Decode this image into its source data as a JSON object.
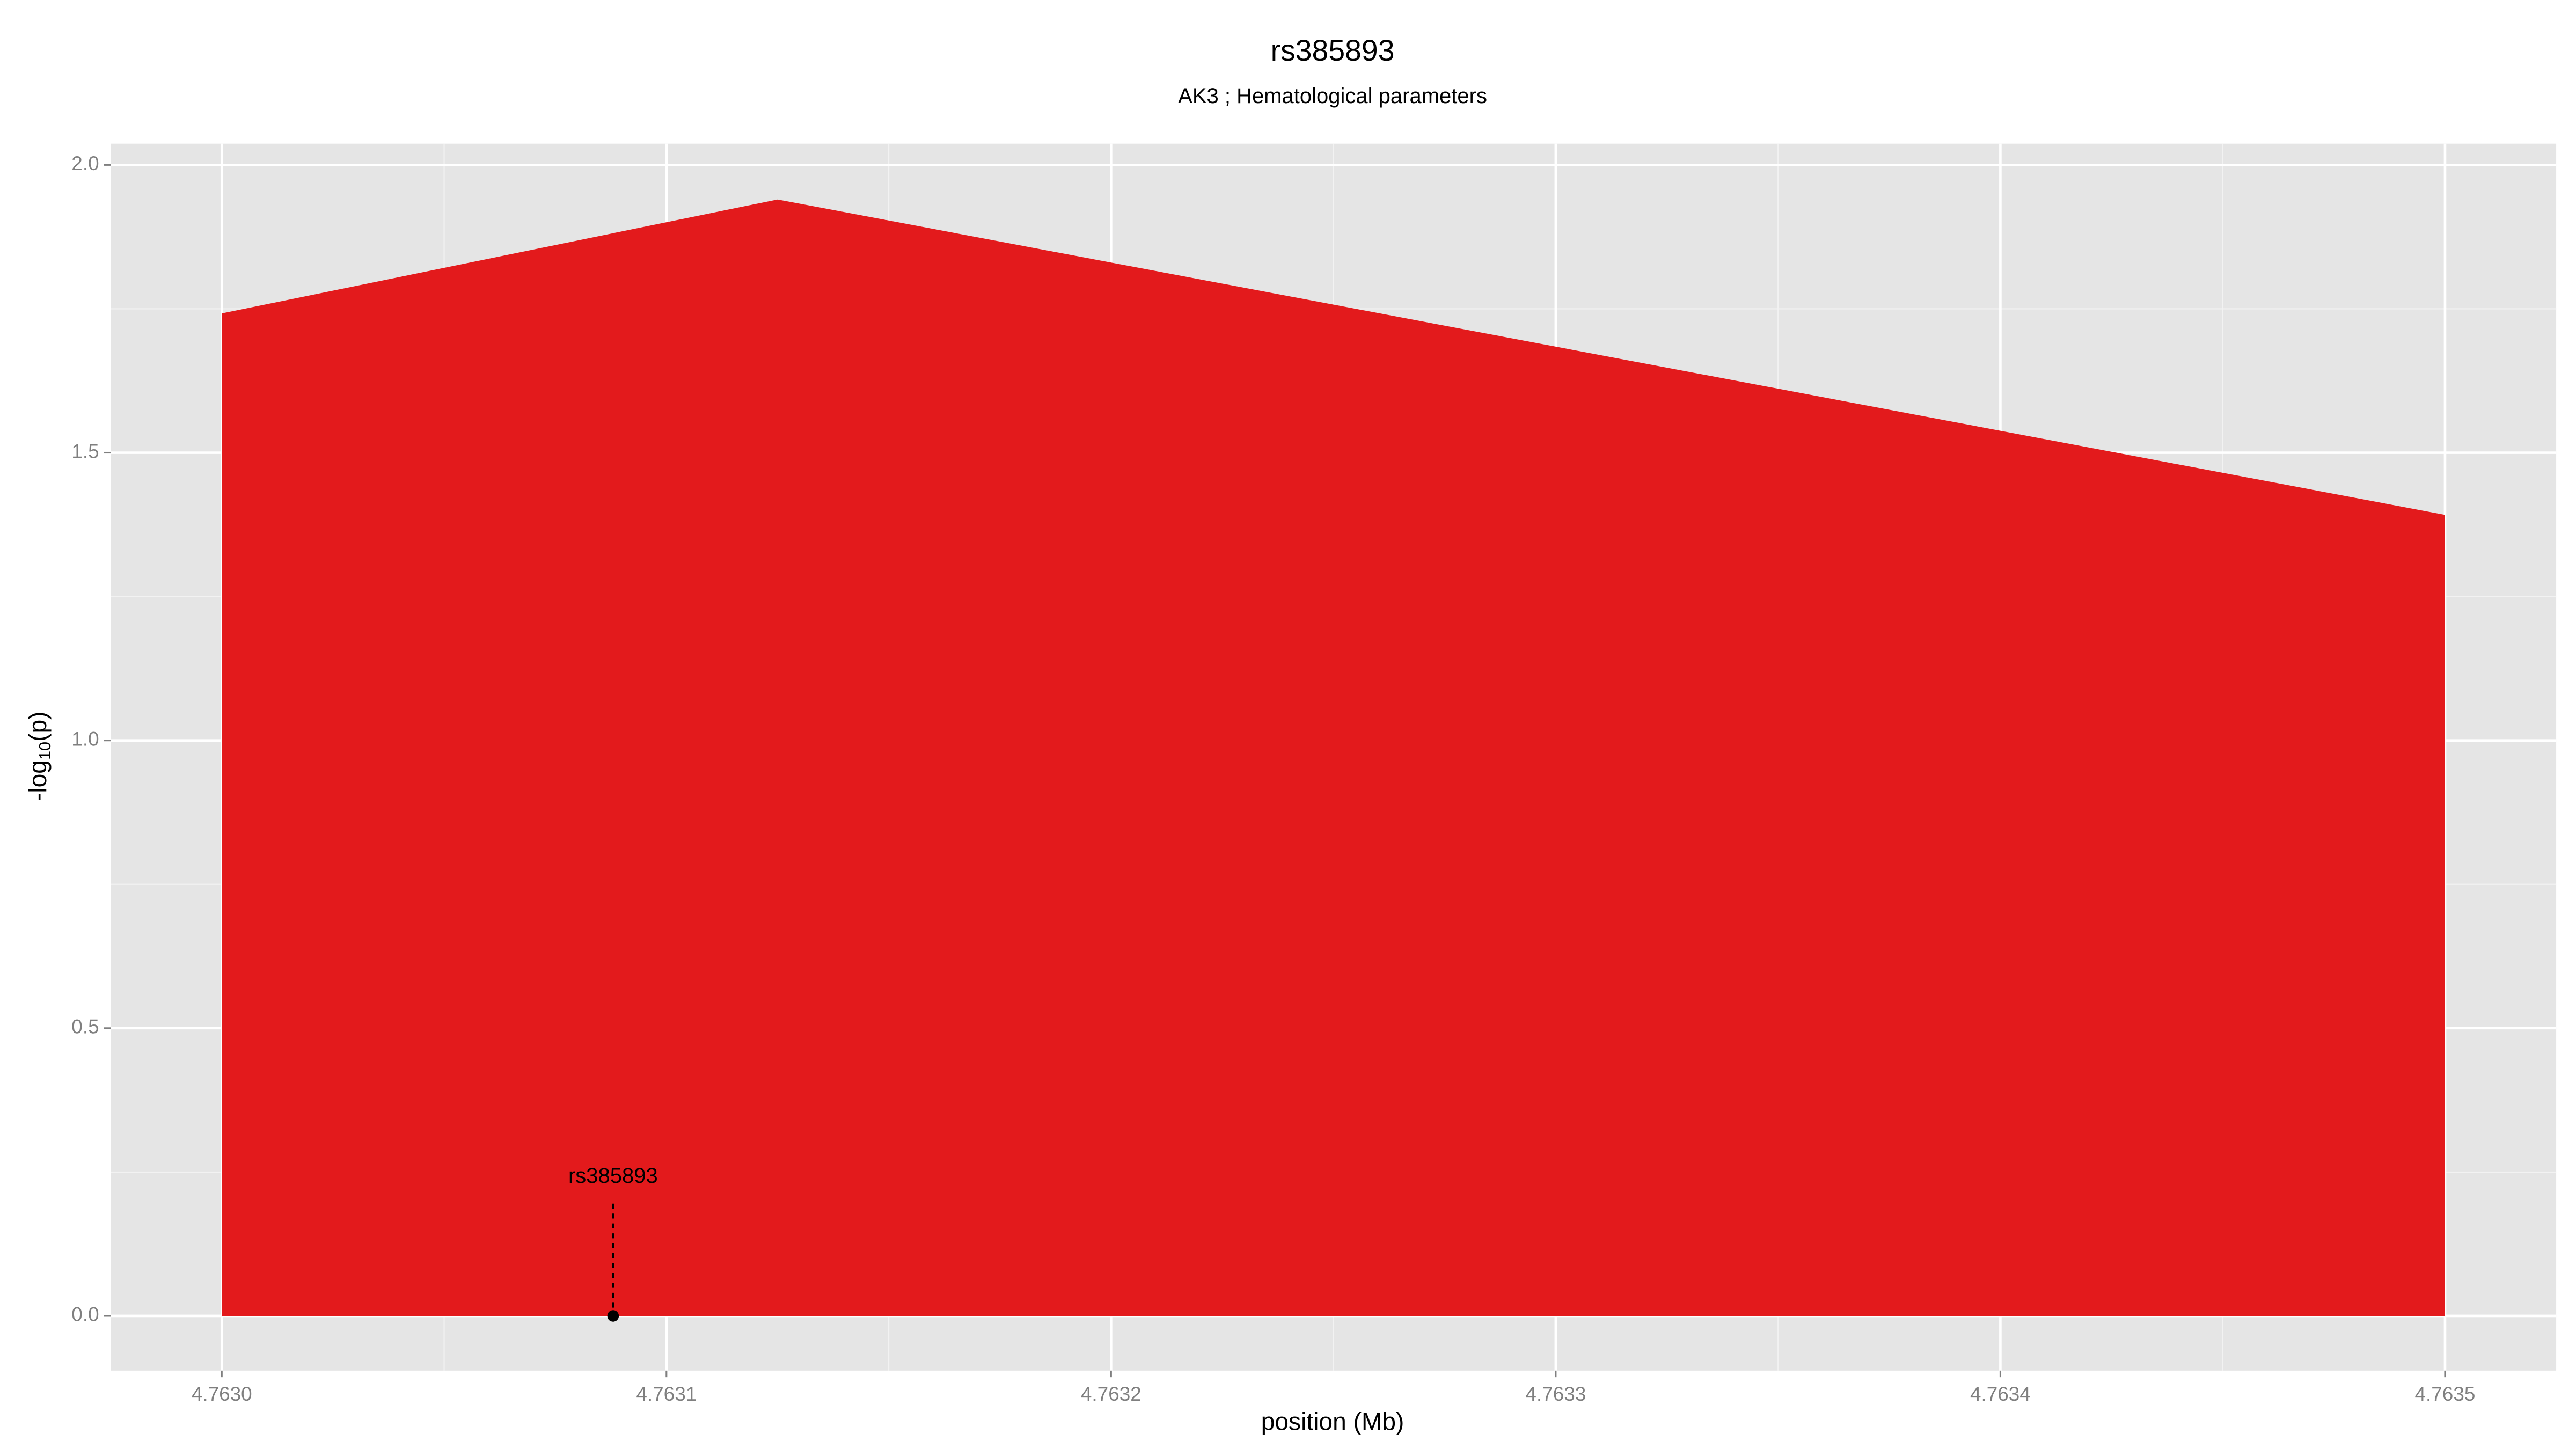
{
  "chart_data": {
    "type": "area",
    "title": "rs385893",
    "subtitle": "AK3 ; Hematological parameters",
    "x_label": "position (Mb)",
    "y_label": [
      "-log",
      "10",
      "(p)"
    ],
    "x": [
      4.763,
      4.763125,
      4.7635
    ],
    "values": [
      1.742,
      1.94,
      1.392
    ],
    "color": "#e31a1c",
    "xlim": [
      4.762975,
      4.763525
    ],
    "ylim": [
      -0.095,
      2.037
    ],
    "xticks": [
      {
        "value": 4.763,
        "label": "4.7630"
      },
      {
        "value": 4.7631,
        "label": "4.7631"
      },
      {
        "value": 4.7632,
        "label": "4.7632"
      },
      {
        "value": 4.7633,
        "label": "4.7633"
      },
      {
        "value": 4.7634,
        "label": "4.7634"
      },
      {
        "value": 4.7635,
        "label": "4.7635"
      }
    ],
    "yticks": [
      {
        "value": 0,
        "label": "0.0"
      },
      {
        "value": 0.5,
        "label": "0.5"
      },
      {
        "value": 1,
        "label": "1.0"
      },
      {
        "value": 1.5,
        "label": "1.5"
      },
      {
        "value": 2,
        "label": "2.0"
      }
    ],
    "grid": true,
    "annotation": {
      "text": "rs385893",
      "x": 4.763088,
      "y": 0
    }
  }
}
